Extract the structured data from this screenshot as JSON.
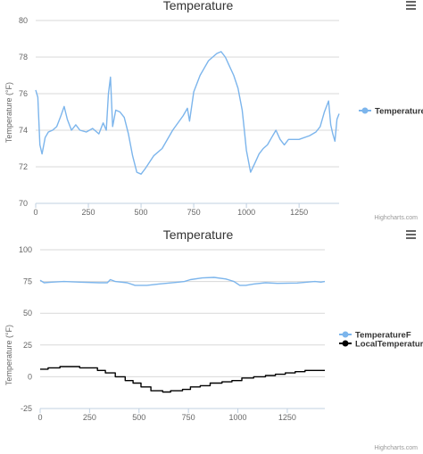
{
  "colors": {
    "series_blue": "#7cb5ec",
    "series_black": "#434348",
    "text": "#333333",
    "axis_text": "#666666",
    "grid": "#d8d8d8",
    "credits": "#999999"
  },
  "menu_icon": "hamburger-menu-icon",
  "chart_data": [
    {
      "type": "line",
      "title": "Temperature",
      "ylabel": "Temperature (°F)",
      "xlabel": "",
      "xlim": [
        0,
        1440
      ],
      "ylim": [
        70,
        80
      ],
      "x_ticks": [
        0,
        250,
        500,
        750,
        1000,
        1250
      ],
      "y_ticks": [
        70,
        72,
        74,
        76,
        78,
        80
      ],
      "grid": true,
      "legend_position": "right",
      "credits": "Highcharts.com",
      "series": [
        {
          "name": "TemperatureF",
          "color": "#7cb5ec",
          "points": [
            [
              0,
              76.2
            ],
            [
              10,
              75.8
            ],
            [
              20,
              73.2
            ],
            [
              30,
              72.7
            ],
            [
              45,
              73.6
            ],
            [
              60,
              73.9
            ],
            [
              80,
              74.0
            ],
            [
              100,
              74.2
            ],
            [
              120,
              74.8
            ],
            [
              135,
              75.3
            ],
            [
              150,
              74.6
            ],
            [
              170,
              74.0
            ],
            [
              190,
              74.3
            ],
            [
              210,
              74.0
            ],
            [
              240,
              73.9
            ],
            [
              270,
              74.1
            ],
            [
              300,
              73.8
            ],
            [
              320,
              74.4
            ],
            [
              335,
              74.0
            ],
            [
              345,
              76.0
            ],
            [
              355,
              76.9
            ],
            [
              365,
              74.2
            ],
            [
              380,
              75.1
            ],
            [
              400,
              75.0
            ],
            [
              420,
              74.7
            ],
            [
              440,
              73.8
            ],
            [
              460,
              72.6
            ],
            [
              480,
              71.7
            ],
            [
              500,
              71.6
            ],
            [
              520,
              71.9
            ],
            [
              560,
              72.6
            ],
            [
              600,
              73.0
            ],
            [
              650,
              74.0
            ],
            [
              700,
              74.8
            ],
            [
              720,
              75.2
            ],
            [
              730,
              74.5
            ],
            [
              750,
              76.1
            ],
            [
              780,
              77.0
            ],
            [
              800,
              77.4
            ],
            [
              820,
              77.8
            ],
            [
              840,
              78.0
            ],
            [
              860,
              78.2
            ],
            [
              880,
              78.3
            ],
            [
              900,
              78.0
            ],
            [
              920,
              77.5
            ],
            [
              940,
              77.0
            ],
            [
              960,
              76.3
            ],
            [
              980,
              75.1
            ],
            [
              990,
              74.0
            ],
            [
              1000,
              72.9
            ],
            [
              1020,
              71.7
            ],
            [
              1040,
              72.2
            ],
            [
              1060,
              72.7
            ],
            [
              1080,
              73.0
            ],
            [
              1100,
              73.2
            ],
            [
              1120,
              73.6
            ],
            [
              1140,
              74.0
            ],
            [
              1160,
              73.5
            ],
            [
              1180,
              73.2
            ],
            [
              1200,
              73.5
            ],
            [
              1250,
              73.5
            ],
            [
              1300,
              73.7
            ],
            [
              1330,
              73.9
            ],
            [
              1350,
              74.2
            ],
            [
              1370,
              75.0
            ],
            [
              1390,
              75.6
            ],
            [
              1400,
              74.3
            ],
            [
              1410,
              73.8
            ],
            [
              1420,
              73.4
            ],
            [
              1430,
              74.6
            ],
            [
              1440,
              74.9
            ]
          ]
        }
      ]
    },
    {
      "type": "line",
      "title": "Temperature",
      "ylabel": "Temperature (°F)",
      "xlabel": "",
      "xlim": [
        0,
        1440
      ],
      "ylim": [
        -25,
        100
      ],
      "x_ticks": [
        0,
        250,
        500,
        750,
        1000,
        1250
      ],
      "y_ticks": [
        -25,
        0,
        25,
        50,
        75,
        100
      ],
      "grid": true,
      "legend_position": "right",
      "credits": "Highcharts.com",
      "series": [
        {
          "name": "TemperatureF",
          "color": "#7cb5ec",
          "points": [
            [
              0,
              76.0
            ],
            [
              20,
              74.0
            ],
            [
              60,
              74.5
            ],
            [
              120,
              75.0
            ],
            [
              200,
              74.5
            ],
            [
              300,
              74.0
            ],
            [
              340,
              74.0
            ],
            [
              355,
              76.5
            ],
            [
              380,
              75.0
            ],
            [
              440,
              74.0
            ],
            [
              480,
              72.0
            ],
            [
              540,
              72.0
            ],
            [
              600,
              73.0
            ],
            [
              700,
              74.5
            ],
            [
              730,
              75.0
            ],
            [
              760,
              76.5
            ],
            [
              820,
              77.8
            ],
            [
              880,
              78.2
            ],
            [
              940,
              77.0
            ],
            [
              980,
              75.0
            ],
            [
              1010,
              72.0
            ],
            [
              1040,
              72.0
            ],
            [
              1080,
              73.0
            ],
            [
              1140,
              74.0
            ],
            [
              1200,
              73.5
            ],
            [
              1300,
              73.8
            ],
            [
              1350,
              74.5
            ],
            [
              1390,
              75.0
            ],
            [
              1420,
              74.5
            ],
            [
              1440,
              75.0
            ]
          ]
        },
        {
          "name": "LocalTemperatureF",
          "color": "#000000",
          "step": true,
          "points": [
            [
              0,
              6
            ],
            [
              40,
              7
            ],
            [
              100,
              8
            ],
            [
              200,
              7
            ],
            [
              290,
              5
            ],
            [
              330,
              3
            ],
            [
              380,
              0
            ],
            [
              430,
              -3
            ],
            [
              470,
              -5
            ],
            [
              510,
              -8
            ],
            [
              560,
              -11
            ],
            [
              620,
              -12
            ],
            [
              660,
              -11
            ],
            [
              720,
              -10
            ],
            [
              760,
              -8
            ],
            [
              810,
              -7
            ],
            [
              860,
              -5
            ],
            [
              920,
              -4
            ],
            [
              970,
              -3
            ],
            [
              1020,
              -1
            ],
            [
              1080,
              0
            ],
            [
              1140,
              1
            ],
            [
              1190,
              2
            ],
            [
              1240,
              3
            ],
            [
              1290,
              4
            ],
            [
              1340,
              5
            ],
            [
              1380,
              5
            ],
            [
              1440,
              5
            ]
          ]
        }
      ]
    }
  ]
}
